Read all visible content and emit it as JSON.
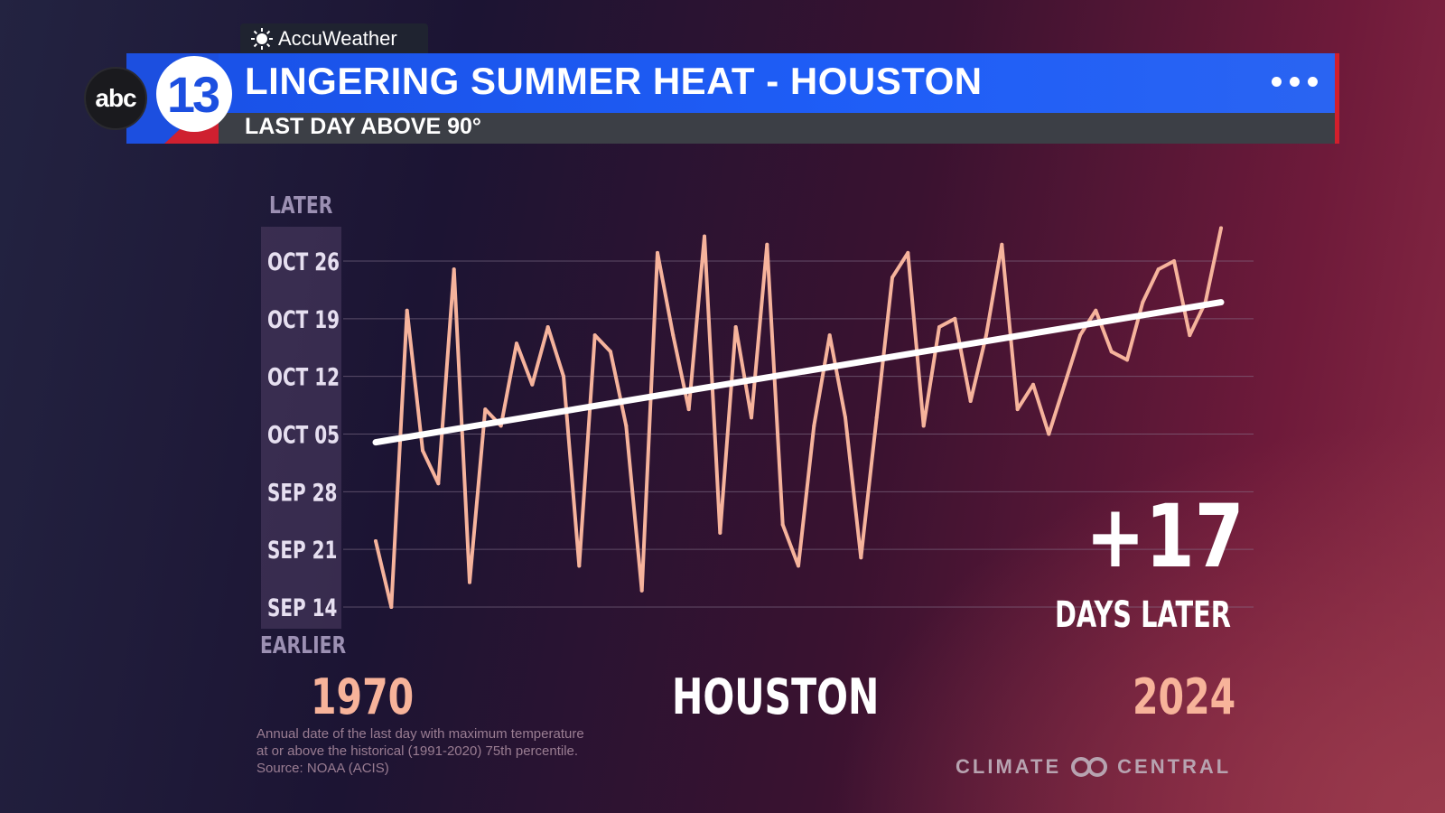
{
  "header": {
    "provider": "AccuWeather",
    "title": "LINGERING SUMMER HEAT - HOUSTON",
    "subtitle": "LAST DAY ABOVE 90°",
    "station_logo_network": "abc",
    "station_logo_number": "13"
  },
  "chart_labels": {
    "later": "LATER",
    "earlier": "EARLIER",
    "highlight_value": "+17",
    "highlight_label": "DAYS LATER",
    "start_year": "1970",
    "location": "HOUSTON",
    "end_year": "2024"
  },
  "footnote": {
    "lines": [
      "Annual date of the last day with maximum temperature",
      "at or above the historical (1991-2020) 75th percentile.",
      "Source: NOAA (ACIS)"
    ]
  },
  "branding": {
    "credit": "CLIMATE",
    "credit2": "CENTRAL"
  },
  "colors": {
    "series_line": "#f6b39c",
    "trend_line": "#ffffff",
    "gridline": "#8a7a94",
    "header_blue": "#1f5ef7",
    "header_red": "#d11f2c"
  },
  "chart_data": {
    "type": "line",
    "title": "LINGERING SUMMER HEAT - HOUSTON",
    "subtitle": "LAST DAY ABOVE 90°",
    "xlabel": "",
    "ylabel": "",
    "xlim": [
      1970,
      2024
    ],
    "y_ticks": [
      "SEP 14",
      "SEP 21",
      "SEP 28",
      "OCT 05",
      "OCT 12",
      "OCT 19",
      "OCT 26"
    ],
    "grid": true,
    "series": [
      {
        "values": [
          [
            "1970",
            "Sep 22"
          ],
          [
            "1971",
            "Sep 14"
          ],
          [
            "1972",
            "Oct 20"
          ],
          [
            "1973",
            "Oct 03"
          ],
          [
            "1974",
            "Sep 29"
          ],
          [
            "1975",
            "Oct 25"
          ],
          [
            "1976",
            "Sep 17"
          ],
          [
            "1977",
            "Oct 08"
          ],
          [
            "1978",
            "Oct 06"
          ],
          [
            "1979",
            "Oct 16"
          ],
          [
            "1980",
            "Oct 11"
          ],
          [
            "1981",
            "Oct 18"
          ],
          [
            "1982",
            "Oct 12"
          ],
          [
            "1983",
            "Sep 19"
          ],
          [
            "1984",
            "Oct 17"
          ],
          [
            "1985",
            "Oct 15"
          ],
          [
            "1986",
            "Oct 06"
          ],
          [
            "1987",
            "Sep 16"
          ],
          [
            "1988",
            "Oct 27"
          ],
          [
            "1989",
            "Oct 17"
          ],
          [
            "1990",
            "Oct 08"
          ],
          [
            "1991",
            "Oct 29"
          ],
          [
            "1992",
            "Sep 23"
          ],
          [
            "1993",
            "Oct 18"
          ],
          [
            "1994",
            "Oct 07"
          ],
          [
            "1995",
            "Oct 28"
          ],
          [
            "1996",
            "Sep 24"
          ],
          [
            "1997",
            "Sep 19"
          ],
          [
            "1998",
            "Oct 06"
          ],
          [
            "1999",
            "Oct 17"
          ],
          [
            "2000",
            "Oct 07"
          ],
          [
            "2001",
            "Sep 20"
          ],
          [
            "2002",
            "Oct 07"
          ],
          [
            "2003",
            "Oct 24"
          ],
          [
            "2004",
            "Oct 27"
          ],
          [
            "2005",
            "Oct 06"
          ],
          [
            "2006",
            "Oct 18"
          ],
          [
            "2007",
            "Oct 19"
          ],
          [
            "2008",
            "Oct 09"
          ],
          [
            "2009",
            "Oct 17"
          ],
          [
            "2010",
            "Oct 28"
          ],
          [
            "2011",
            "Oct 08"
          ],
          [
            "2012",
            "Oct 11"
          ],
          [
            "2013",
            "Oct 05"
          ],
          [
            "2014",
            "Oct 11"
          ],
          [
            "2015",
            "Oct 17"
          ],
          [
            "2016",
            "Oct 20"
          ],
          [
            "2017",
            "Oct 15"
          ],
          [
            "2018",
            "Oct 14"
          ],
          [
            "2019",
            "Oct 21"
          ],
          [
            "2020",
            "Oct 25"
          ],
          [
            "2021",
            "Oct 26"
          ],
          [
            "2022",
            "Oct 17"
          ],
          [
            "2023",
            "Oct 21"
          ],
          [
            "2024",
            "Oct 30"
          ]
        ]
      }
    ],
    "trend": {
      "start": [
        "1970",
        "Oct 04"
      ],
      "end": [
        "2024",
        "Oct 21"
      ]
    },
    "annotation": "+17 DAYS LATER"
  }
}
